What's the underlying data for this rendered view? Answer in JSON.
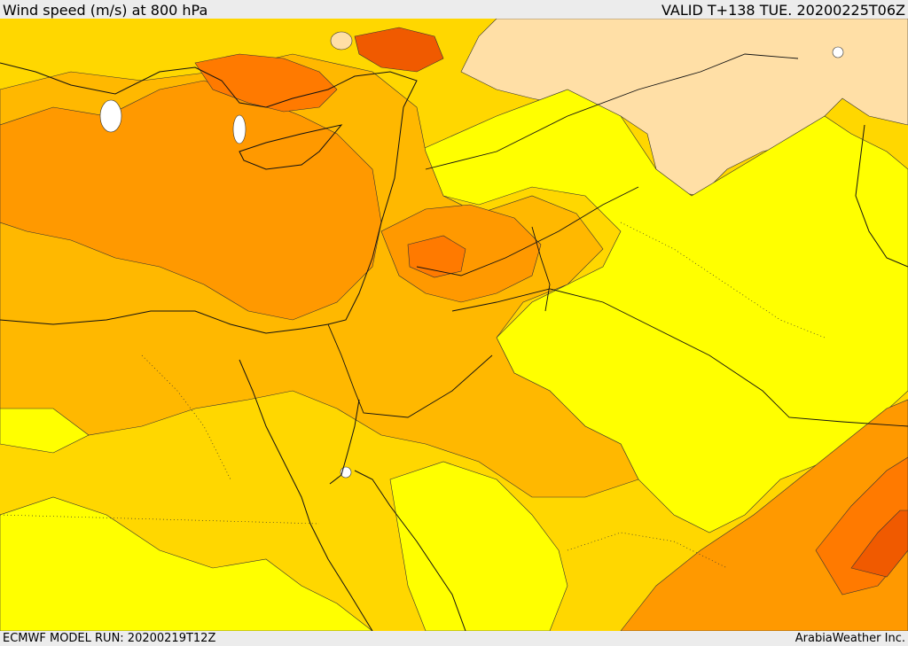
{
  "header": {
    "title": "Wind speed (m/s) at 800 hPa",
    "valid": "VALID T+138 TUE. 20200225T06Z"
  },
  "footer": {
    "model_run": "ECMWF MODEL RUN: 20200219T12Z",
    "credit": "ArabiaWeather Inc."
  },
  "map": {
    "variable": "wind speed",
    "pressure_level_hpa": 800,
    "region": "Eastern Mediterranean, Levant, Egypt, Arabian Peninsula",
    "colors": {
      "land_calm": "#ffdfa6",
      "band_1": "#ffff00",
      "band_2": "#ffd700",
      "band_3": "#ffb800",
      "band_4": "#ff9900",
      "band_5": "#ff7a00",
      "band_6": "#f05a00",
      "contour_line": "#333333",
      "coastline": "#111111",
      "border": "#111111"
    }
  }
}
